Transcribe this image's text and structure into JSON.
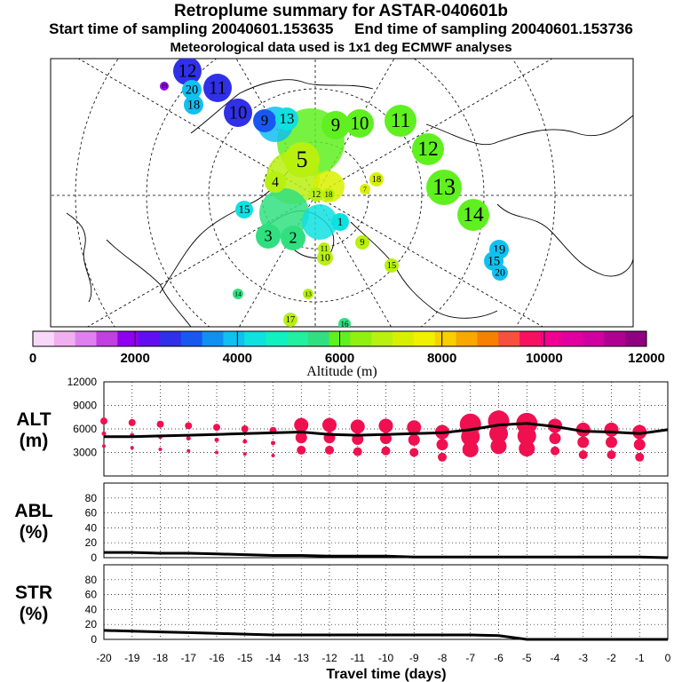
{
  "title": "Retroplume summary for ASTAR-040601b",
  "subtitle_start": "Start time of sampling 20040601.153635",
  "subtitle_end": "End time of sampling 20040601.153736",
  "subtitle_met": "Meteorological data used is 1x1 deg ECMWF analyses",
  "colors": {
    "scale": [
      "#f8d8f8",
      "#f0b0f0",
      "#e080f0",
      "#c040e0",
      "#9000f0",
      "#6010f0",
      "#3030e8",
      "#1858f0",
      "#1090f0",
      "#10c0f0",
      "#10e0e0",
      "#10f0c0",
      "#20f0a0",
      "#30e080",
      "#60f020",
      "#90f010",
      "#b8f010",
      "#d8f000",
      "#f0f000",
      "#f8d000",
      "#f8a800",
      "#f88000",
      "#f85040",
      "#f81060",
      "#f00090",
      "#e000a0",
      "#d000a0",
      "#b00090",
      "#900080"
    ],
    "alt_markers": "#f01050",
    "line": "#000000"
  },
  "colorbar": {
    "labels": [
      "0",
      "2000",
      "4000",
      "6000",
      "8000",
      "10000",
      "12000"
    ],
    "title": "Altitude (m)"
  },
  "map_labels": [
    {
      "t": "12",
      "c": "#3030e8"
    },
    {
      "t": "11",
      "c": "#3030e8"
    },
    {
      "t": "10",
      "c": "#3030e8"
    },
    {
      "t": "20",
      "c": "#10c0f0"
    },
    {
      "t": "18",
      "c": "#10c0f0"
    },
    {
      "t": "19",
      "c": "#9000f0"
    },
    {
      "t": "9",
      "c": "#1858f0"
    },
    {
      "t": "13",
      "c": "#10e0e0"
    },
    {
      "t": "9",
      "c": "#60f020"
    },
    {
      "t": "10",
      "c": "#60f020"
    },
    {
      "t": "11",
      "c": "#60f020"
    },
    {
      "t": "12",
      "c": "#60f020"
    },
    {
      "t": "13",
      "c": "#60f020"
    },
    {
      "t": "14",
      "c": "#60f020"
    },
    {
      "t": "5",
      "c": "#b8f010"
    },
    {
      "t": "4",
      "c": "#b8f010"
    },
    {
      "t": "15",
      "c": "#10e0e0"
    },
    {
      "t": "2",
      "c": "#30e080"
    },
    {
      "t": "3",
      "c": "#30e080"
    },
    {
      "t": "1",
      "c": "#10e0e0"
    },
    {
      "t": "9",
      "c": "#b8f010"
    },
    {
      "t": "10",
      "c": "#b8f010"
    },
    {
      "t": "11",
      "c": "#b8f010"
    },
    {
      "t": "15",
      "c": "#b8f010"
    },
    {
      "t": "18",
      "c": "#d8f000"
    },
    {
      "t": "7",
      "c": "#d8f000"
    },
    {
      "t": "19",
      "c": "#10c0f0"
    },
    {
      "t": "15",
      "c": "#10c0f0"
    },
    {
      "t": "20",
      "c": "#10c0f0"
    },
    {
      "t": "14",
      "c": "#30e080"
    },
    {
      "t": "16",
      "c": "#30e080"
    },
    {
      "t": "17",
      "c": "#b8f010"
    },
    {
      "t": "12",
      "c": "#b8f010"
    },
    {
      "t": "18",
      "c": "#b8f010"
    },
    {
      "t": "13",
      "c": "#b8f010"
    }
  ],
  "chart_data": [
    {
      "name": "ALT",
      "type": "line",
      "ylabel": "ALT (m)",
      "yticks": [
        "12000",
        "9000",
        "6000",
        "3000"
      ],
      "ylim": [
        0,
        12000
      ],
      "x": [
        -20,
        -19,
        -18,
        -17,
        -16,
        -15,
        -14,
        -13,
        -12,
        -11,
        -10,
        -9,
        -8,
        -7,
        -6,
        -5,
        -4,
        -3,
        -2,
        -1,
        0
      ],
      "mean_altitude_m": [
        5000,
        5000,
        5100,
        5200,
        5300,
        5400,
        5500,
        5600,
        5300,
        5200,
        5300,
        5400,
        5500,
        5900,
        6500,
        6700,
        6300,
        5700,
        5600,
        5400,
        5900
      ],
      "marker_altitudes_m": [
        7000,
        6800,
        6600,
        6400,
        6200,
        6000,
        5800,
        6500,
        6500,
        6300,
        6400,
        6200,
        5600,
        6600,
        7000,
        6700,
        6400,
        5900,
        5900,
        5600
      ],
      "marker_sizes": [
        1,
        1,
        1,
        1,
        1,
        1,
        1,
        2,
        2,
        2,
        2,
        2,
        2,
        3,
        3,
        3,
        2,
        2,
        2,
        2
      ]
    },
    {
      "name": "ABL",
      "type": "line",
      "ylabel": "ABL (%)",
      "yticks": [
        "80",
        "60",
        "40",
        "20",
        "0"
      ],
      "ylim": [
        0,
        100
      ],
      "x": [
        -20,
        -19,
        -18,
        -17,
        -16,
        -15,
        -14,
        -13,
        -12,
        -11,
        -10,
        -9,
        -8,
        -7,
        -6,
        -5,
        -4,
        -3,
        -2,
        -1,
        0
      ],
      "values": [
        7,
        7,
        6,
        6,
        5,
        4,
        3,
        3,
        2,
        2,
        2,
        1,
        1,
        1,
        1,
        1,
        1,
        1,
        1,
        1,
        0
      ]
    },
    {
      "name": "STR",
      "type": "line",
      "ylabel": "STR (%)",
      "yticks": [
        "80",
        "60",
        "40",
        "20",
        "0"
      ],
      "ylim": [
        0,
        100
      ],
      "x": [
        -20,
        -19,
        -18,
        -17,
        -16,
        -15,
        -14,
        -13,
        -12,
        -11,
        -10,
        -9,
        -8,
        -7,
        -6,
        -5,
        -4,
        -3,
        -2,
        -1,
        0
      ],
      "values": [
        12,
        11,
        10,
        9,
        8,
        7,
        6,
        6,
        6,
        6,
        6,
        6,
        6,
        6,
        5,
        0,
        0,
        0,
        0,
        0,
        0
      ]
    }
  ],
  "xaxis": {
    "ticks": [
      "-20",
      "-19",
      "-18",
      "-17",
      "-16",
      "-15",
      "-14",
      "-13",
      "-12",
      "-11",
      "-10",
      "-9",
      "-8",
      "-7",
      "-6",
      "-5",
      "-4",
      "-3",
      "-2",
      "-1",
      "0"
    ],
    "label": "Travel time (days)"
  }
}
